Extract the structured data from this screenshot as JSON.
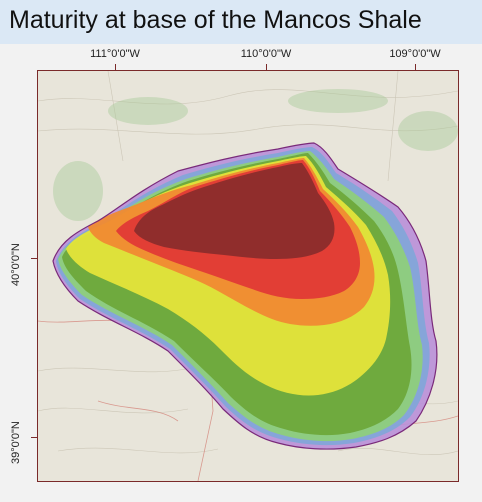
{
  "title": "Maturity at base of the Mancos Shale",
  "map": {
    "longitude_labels": [
      "111°0'0\"W",
      "110°0'0\"W",
      "109°0'0\"W"
    ],
    "latitude_labels": [
      "40°0'0\"N",
      "39°0'0\"N"
    ],
    "zone_colors": {
      "purple": "#b98fd8",
      "blue": "#7fa6d8",
      "light_green": "#8fcf7a",
      "green": "#6ea83a",
      "yellow": "#e4e43a",
      "orange": "#f08a32",
      "red": "#e03a36",
      "dark_red": "#8b2c2c",
      "boundary": "#7a2a7a",
      "frame": "#7a2a2a"
    }
  }
}
